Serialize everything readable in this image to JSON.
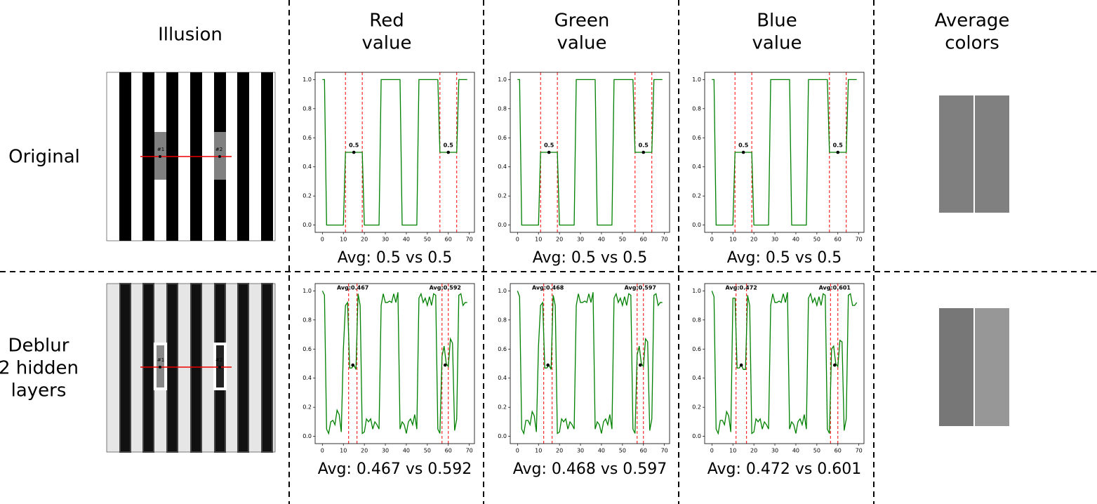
{
  "columns": [
    [
      "Illusion"
    ],
    [
      "Red",
      "value"
    ],
    [
      "Green",
      "value"
    ],
    [
      "Blue",
      "value"
    ],
    [
      "Average",
      "colors"
    ]
  ],
  "rows": [
    [
      "Original"
    ],
    [
      "Deblur",
      "2 hidden",
      "layers"
    ]
  ],
  "illusions": [
    {
      "markers": [
        "#1",
        "#2"
      ]
    },
    {
      "markers": [
        "#1",
        "#2"
      ]
    }
  ],
  "swatches": [
    [
      "#7f7f7f",
      "#808080"
    ],
    [
      "#777777",
      "#979797"
    ]
  ],
  "chart_data": [
    {
      "type": "line",
      "caption": "Avg: 0.5 vs 0.5",
      "x": [
        0,
        1,
        2,
        10,
        11,
        19,
        20,
        27,
        28,
        37,
        38,
        45,
        46,
        55,
        56,
        64,
        65,
        69
      ],
      "series": [
        {
          "color": "green",
          "values": [
            1,
            1,
            0,
            0,
            0.5,
            0.5,
            0,
            0,
            1,
            1,
            0,
            0,
            1,
            1,
            0.5,
            0.5,
            1,
            1
          ]
        }
      ],
      "xlim": [
        -3.45,
        72.45
      ],
      "ylim": [
        -0.05,
        1.05
      ],
      "xticks": [
        0,
        10,
        20,
        30,
        40,
        50,
        60,
        70
      ],
      "yticks": [
        {
          "value": 0,
          "label": "0.0"
        },
        0.2,
        0.4,
        0.6,
        0.8,
        {
          "value": 1,
          "label": "1.0"
        }
      ],
      "vlines": [
        11,
        19,
        56,
        64
      ],
      "vline_color": "red",
      "points_x": [
        15,
        60
      ],
      "points_y": [
        0.5,
        0.5
      ],
      "annotations": [
        "0.5",
        "0.5"
      ],
      "label_position": "above"
    },
    {
      "type": "line",
      "caption": "Avg: 0.5 vs 0.5",
      "x": [
        0,
        1,
        2,
        10,
        11,
        19,
        20,
        27,
        28,
        37,
        38,
        45,
        46,
        55,
        56,
        64,
        65,
        69
      ],
      "series": [
        {
          "color": "green",
          "values": [
            1,
            1,
            0,
            0,
            0.5,
            0.5,
            0,
            0,
            1,
            1,
            0,
            0,
            1,
            1,
            0.5,
            0.5,
            1,
            1
          ]
        }
      ],
      "xlim": [
        -3.45,
        72.45
      ],
      "ylim": [
        -0.05,
        1.05
      ],
      "xticks": [
        0,
        10,
        20,
        30,
        40,
        50,
        60,
        70
      ],
      "yticks": [
        {
          "value": 0,
          "label": "0.0"
        },
        0.2,
        0.4,
        0.6,
        0.8,
        {
          "value": 1,
          "label": "1.0"
        }
      ],
      "vlines": [
        11,
        19,
        56,
        64
      ],
      "vline_color": "red",
      "points_x": [
        15,
        60
      ],
      "points_y": [
        0.5,
        0.5
      ],
      "annotations": [
        "0.5",
        "0.5"
      ],
      "label_position": "above"
    },
    {
      "type": "line",
      "caption": "Avg: 0.5 vs 0.5",
      "x": [
        0,
        1,
        2,
        10,
        11,
        19,
        20,
        27,
        28,
        37,
        38,
        45,
        46,
        55,
        56,
        64,
        65,
        69
      ],
      "series": [
        {
          "color": "green",
          "values": [
            1,
            1,
            0,
            0,
            0.5,
            0.5,
            0,
            0,
            1,
            1,
            0,
            0,
            1,
            1,
            0.5,
            0.5,
            1,
            1
          ]
        }
      ],
      "xlim": [
        -3.45,
        72.45
      ],
      "ylim": [
        -0.05,
        1.05
      ],
      "xticks": [
        0,
        10,
        20,
        30,
        40,
        50,
        60,
        70
      ],
      "yticks": [
        {
          "value": 0,
          "label": "0.0"
        },
        0.2,
        0.4,
        0.6,
        0.8,
        {
          "value": 1,
          "label": "1.0"
        }
      ],
      "vlines": [
        11,
        19,
        56,
        64
      ],
      "vline_color": "red",
      "points_x": [
        15,
        60
      ],
      "points_y": [
        0.5,
        0.5
      ],
      "annotations": [
        "0.5",
        "0.5"
      ],
      "label_position": "above"
    },
    {
      "type": "line",
      "caption": "Avg: 0.467 vs 0.592",
      "x": [
        0,
        1,
        2,
        3,
        4,
        5,
        6,
        7,
        8,
        9,
        10,
        11,
        12,
        13,
        14,
        15,
        16,
        17,
        18,
        19,
        20,
        21,
        22,
        23,
        24,
        25,
        26,
        27,
        28,
        29,
        30,
        31,
        32,
        33,
        34,
        35,
        36,
        37,
        38,
        39,
        40,
        41,
        42,
        43,
        44,
        45,
        46,
        47,
        48,
        49,
        50,
        51,
        52,
        53,
        54,
        55,
        56,
        57,
        58,
        59,
        60,
        61,
        62,
        63,
        64,
        65,
        66,
        67,
        68,
        69
      ],
      "series": [
        {
          "color": "green",
          "values": [
            1.0,
            0.97,
            0.05,
            0.02,
            0.1,
            0.11,
            0.08,
            0.18,
            0.15,
            0.03,
            0.6,
            0.9,
            0.92,
            0.47,
            0.47,
            0.49,
            0.46,
            0.98,
            0.9,
            0.02,
            0.03,
            0.12,
            0.1,
            0.12,
            0.05,
            0.1,
            0.08,
            0.05,
            0.9,
            0.98,
            0.92,
            0.92,
            0.93,
            0.92,
            0.98,
            0.92,
            0.99,
            0.05,
            0.1,
            0.08,
            0.02,
            0.1,
            0.12,
            0.08,
            0.15,
            0.05,
            0.95,
            0.98,
            0.92,
            0.95,
            0.9,
            0.96,
            0.9,
            0.98,
            0.97,
            0.05,
            0.02,
            0.55,
            0.62,
            0.5,
            0.48,
            0.67,
            0.64,
            0.04,
            0.12,
            0.97,
            0.98,
            0.9,
            0.92,
            0.92
          ]
        }
      ],
      "xlim": [
        -3.45,
        72.45
      ],
      "ylim": [
        -0.05,
        1.05
      ],
      "xticks": [
        0,
        10,
        20,
        30,
        40,
        50,
        60,
        70
      ],
      "yticks": [
        {
          "value": 0,
          "label": "0.0"
        },
        0.2,
        0.4,
        0.6,
        0.8,
        {
          "value": 1,
          "label": "1.0"
        }
      ],
      "vlines": [
        12.5,
        16.5,
        57,
        60
      ],
      "vline_color": "red",
      "points_x": [
        14.5,
        58.5
      ],
      "points_y": [
        0.49,
        0.49
      ],
      "annotations": [
        "Avg:0.467",
        "Avg:0.592"
      ],
      "label_position": "top"
    },
    {
      "type": "line",
      "caption": "Avg: 0.468 vs 0.597",
      "x": [
        0,
        1,
        2,
        3,
        4,
        5,
        6,
        7,
        8,
        9,
        10,
        11,
        12,
        13,
        14,
        15,
        16,
        17,
        18,
        19,
        20,
        21,
        22,
        23,
        24,
        25,
        26,
        27,
        28,
        29,
        30,
        31,
        32,
        33,
        34,
        35,
        36,
        37,
        38,
        39,
        40,
        41,
        42,
        43,
        44,
        45,
        46,
        47,
        48,
        49,
        50,
        51,
        52,
        53,
        54,
        55,
        56,
        57,
        58,
        59,
        60,
        61,
        62,
        63,
        64,
        65,
        66,
        67,
        68,
        69
      ],
      "series": [
        {
          "color": "green",
          "values": [
            1.0,
            0.96,
            0.05,
            0.02,
            0.11,
            0.11,
            0.08,
            0.17,
            0.14,
            0.03,
            0.62,
            0.9,
            0.92,
            0.47,
            0.47,
            0.49,
            0.46,
            0.97,
            0.9,
            0.02,
            0.03,
            0.12,
            0.1,
            0.12,
            0.05,
            0.1,
            0.08,
            0.05,
            0.9,
            0.98,
            0.92,
            0.92,
            0.93,
            0.92,
            0.98,
            0.92,
            0.99,
            0.05,
            0.1,
            0.08,
            0.02,
            0.1,
            0.12,
            0.08,
            0.15,
            0.05,
            0.95,
            0.98,
            0.92,
            0.95,
            0.9,
            0.96,
            0.9,
            0.98,
            0.97,
            0.05,
            0.02,
            0.56,
            0.62,
            0.5,
            0.48,
            0.67,
            0.65,
            0.04,
            0.12,
            0.97,
            0.98,
            0.9,
            0.92,
            0.92
          ]
        }
      ],
      "xlim": [
        -3.45,
        72.45
      ],
      "ylim": [
        -0.05,
        1.05
      ],
      "xticks": [
        0,
        10,
        20,
        30,
        40,
        50,
        60,
        70
      ],
      "yticks": [
        {
          "value": 0,
          "label": "0.0"
        },
        0.2,
        0.4,
        0.6,
        0.8,
        {
          "value": 1,
          "label": "1.0"
        }
      ],
      "vlines": [
        12.5,
        16.5,
        57,
        60
      ],
      "vline_color": "red",
      "points_x": [
        14.5,
        58.5
      ],
      "points_y": [
        0.49,
        0.49
      ],
      "annotations": [
        "Avg:0.468",
        "Avg:0.597"
      ],
      "label_position": "top"
    },
    {
      "type": "line",
      "caption": "Avg: 0.472 vs 0.601",
      "x": [
        0,
        1,
        2,
        3,
        4,
        5,
        6,
        7,
        8,
        9,
        10,
        11,
        12,
        13,
        14,
        15,
        16,
        17,
        18,
        19,
        20,
        21,
        22,
        23,
        24,
        25,
        26,
        27,
        28,
        29,
        30,
        31,
        32,
        33,
        34,
        35,
        36,
        37,
        38,
        39,
        40,
        41,
        42,
        43,
        44,
        45,
        46,
        47,
        48,
        49,
        50,
        51,
        52,
        53,
        54,
        55,
        56,
        57,
        58,
        59,
        60,
        61,
        62,
        63,
        64,
        65,
        66,
        67,
        68,
        69
      ],
      "series": [
        {
          "color": "green",
          "values": [
            1.0,
            0.96,
            0.05,
            0.02,
            0.11,
            0.11,
            0.08,
            0.17,
            0.14,
            0.03,
            0.95,
            0.95,
            0.47,
            0.47,
            0.49,
            0.46,
            0.46,
            0.97,
            0.9,
            0.02,
            0.03,
            0.12,
            0.1,
            0.12,
            0.05,
            0.1,
            0.08,
            0.05,
            0.9,
            0.98,
            0.92,
            0.92,
            0.93,
            0.92,
            0.98,
            0.92,
            0.99,
            0.05,
            0.1,
            0.08,
            0.02,
            0.1,
            0.12,
            0.08,
            0.15,
            0.05,
            0.95,
            0.98,
            0.92,
            0.95,
            0.9,
            0.96,
            0.9,
            0.98,
            0.97,
            0.05,
            0.02,
            0.6,
            0.62,
            0.5,
            0.48,
            0.66,
            0.65,
            0.04,
            0.12,
            0.97,
            0.98,
            0.9,
            0.9,
            0.92
          ]
        }
      ],
      "xlim": [
        -3.45,
        72.45
      ],
      "ylim": [
        -0.05,
        1.05
      ],
      "xticks": [
        0,
        10,
        20,
        30,
        40,
        50,
        60,
        70
      ],
      "yticks": [
        {
          "value": 0,
          "label": "0.0"
        },
        0.2,
        0.4,
        0.6,
        0.8,
        {
          "value": 1,
          "label": "1.0"
        }
      ],
      "vlines": [
        11.5,
        16.5,
        56.5,
        60
      ],
      "vline_color": "red",
      "points_x": [
        14,
        58.5
      ],
      "points_y": [
        0.49,
        0.49
      ],
      "annotations": [
        "Avg:0.472",
        "Avg:0.601"
      ],
      "label_position": "top"
    }
  ]
}
